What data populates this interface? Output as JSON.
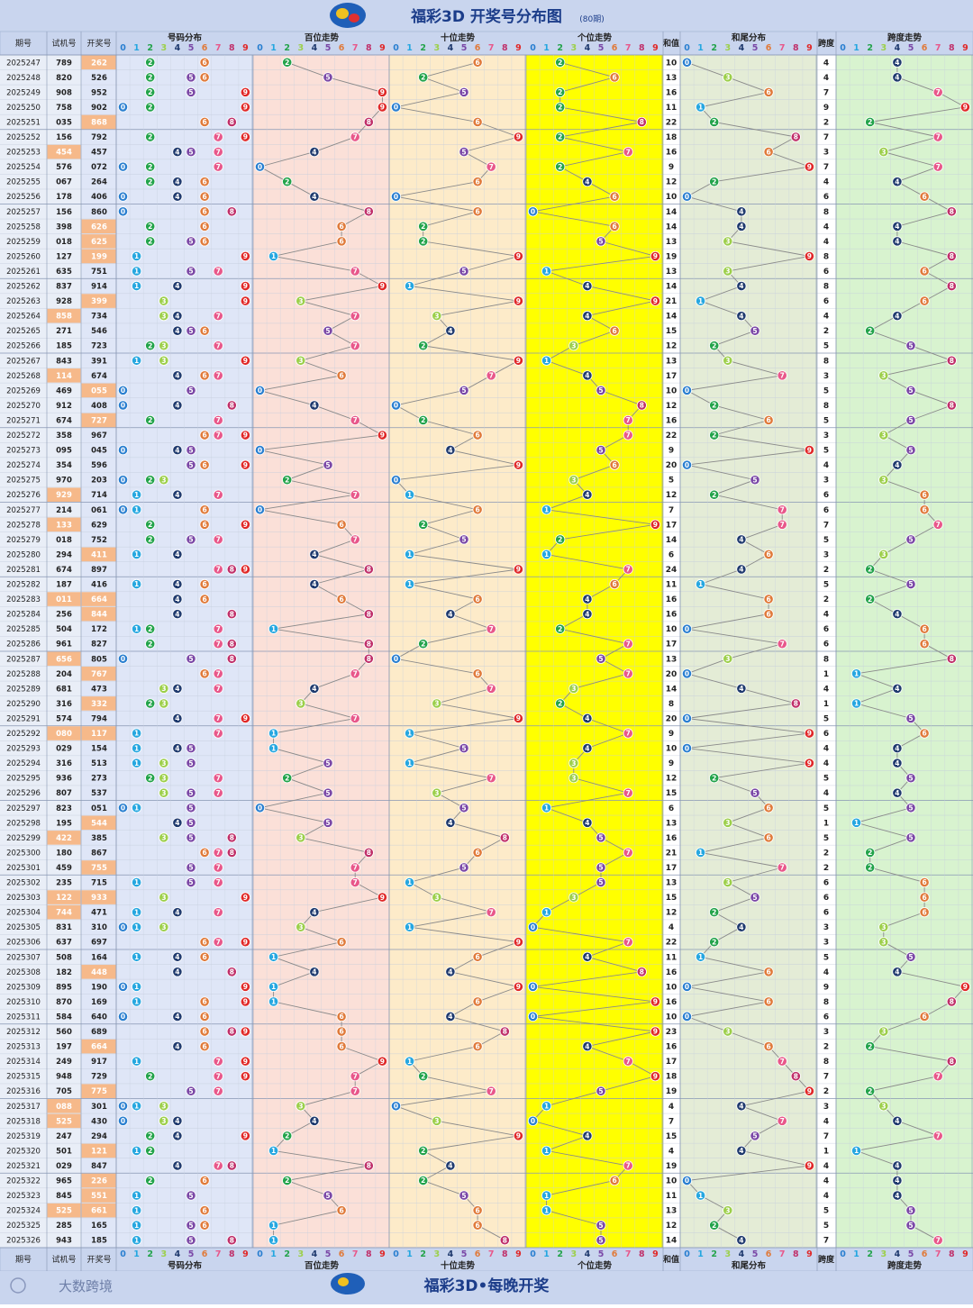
{
  "title": "福彩3D 开奖号分布图",
  "title_note": "(80期)",
  "footer_brand": "大数跨境",
  "footer_title": "福彩3D•每晚开奖",
  "headers": {
    "issue": "期号",
    "trial": "试机号",
    "draw": "开奖号",
    "g_dist": "号码分布",
    "g_h": "百位走势",
    "g_t": "十位走势",
    "g_u": "个位走势",
    "g_sum": "和值",
    "g_tail": "和尾分布",
    "g_span": "跨度",
    "g_spantrend": "跨度走势"
  },
  "digits": [
    "0",
    "1",
    "2",
    "3",
    "4",
    "5",
    "6",
    "7",
    "8",
    "9"
  ],
  "colors": {
    "c0": "#2a7fd0",
    "c1": "#26a7e0",
    "c2": "#22a34a",
    "c3": "#9ccf4a",
    "c4": "#1f3a6e",
    "c5": "#7a47a6",
    "c6": "#e07a3a",
    "c7": "#e8578a",
    "c8": "#c0306a",
    "c9": "#e02828",
    "header_bg": "#c9d5ee",
    "dist_bg": "#dfe6f7",
    "h_bg": "#fbe0d8",
    "t_bg": "#fdebc9",
    "u_bg": "#ffff00",
    "sum_bg": "#eaf0dc",
    "tail_bg": "#e4ecd6",
    "span_bg": "#d8f3cf",
    "highlight": "#f6b98a"
  },
  "chart_data": {
    "type": "table",
    "columns": [
      "期号",
      "试机号",
      "开奖号",
      "和值",
      "跨度"
    ],
    "rows": [
      [
        "2025247",
        "789",
        "262"
      ],
      [
        "2025248",
        "820",
        "526"
      ],
      [
        "2025249",
        "908",
        "952"
      ],
      [
        "2025250",
        "758",
        "902"
      ],
      [
        "2025251",
        "035",
        "868"
      ],
      [
        "2025252",
        "156",
        "792"
      ],
      [
        "2025253",
        "454",
        "457"
      ],
      [
        "2025254",
        "576",
        "072"
      ],
      [
        "2025255",
        "067",
        "264"
      ],
      [
        "2025256",
        "178",
        "406"
      ],
      [
        "2025257",
        "156",
        "860"
      ],
      [
        "2025258",
        "398",
        "626"
      ],
      [
        "2025259",
        "018",
        "625"
      ],
      [
        "2025260",
        "127",
        "199"
      ],
      [
        "2025261",
        "635",
        "751"
      ],
      [
        "2025262",
        "837",
        "914"
      ],
      [
        "2025263",
        "928",
        "399"
      ],
      [
        "2025264",
        "858",
        "734"
      ],
      [
        "2025265",
        "271",
        "546"
      ],
      [
        "2025266",
        "185",
        "723"
      ],
      [
        "2025267",
        "843",
        "391"
      ],
      [
        "2025268",
        "114",
        "674"
      ],
      [
        "2025269",
        "469",
        "055"
      ],
      [
        "2025270",
        "912",
        "408"
      ],
      [
        "2025271",
        "674",
        "727"
      ],
      [
        "2025272",
        "358",
        "967"
      ],
      [
        "2025273",
        "095",
        "045"
      ],
      [
        "2025274",
        "354",
        "596"
      ],
      [
        "2025275",
        "970",
        "203"
      ],
      [
        "2025276",
        "929",
        "714"
      ],
      [
        "2025277",
        "214",
        "061"
      ],
      [
        "2025278",
        "133",
        "629"
      ],
      [
        "2025279",
        "018",
        "752"
      ],
      [
        "2025280",
        "294",
        "411"
      ],
      [
        "2025281",
        "674",
        "897"
      ],
      [
        "2025282",
        "187",
        "416"
      ],
      [
        "2025283",
        "011",
        "664"
      ],
      [
        "2025284",
        "256",
        "844"
      ],
      [
        "2025285",
        "504",
        "172"
      ],
      [
        "2025286",
        "961",
        "827"
      ],
      [
        "2025287",
        "656",
        "805"
      ],
      [
        "2025288",
        "204",
        "767"
      ],
      [
        "2025289",
        "681",
        "473"
      ],
      [
        "2025290",
        "316",
        "332"
      ],
      [
        "2025291",
        "574",
        "794"
      ],
      [
        "2025292",
        "080",
        "117"
      ],
      [
        "2025293",
        "029",
        "154"
      ],
      [
        "2025294",
        "316",
        "513"
      ],
      [
        "2025295",
        "936",
        "273"
      ],
      [
        "2025296",
        "807",
        "537"
      ],
      [
        "2025297",
        "823",
        "051"
      ],
      [
        "2025298",
        "195",
        "544"
      ],
      [
        "2025299",
        "422",
        "385"
      ],
      [
        "2025300",
        "180",
        "867"
      ],
      [
        "2025301",
        "459",
        "755"
      ],
      [
        "2025302",
        "235",
        "715"
      ],
      [
        "2025303",
        "122",
        "933"
      ],
      [
        "2025304",
        "744",
        "471"
      ],
      [
        "2025305",
        "831",
        "310"
      ],
      [
        "2025306",
        "637",
        "697"
      ],
      [
        "2025307",
        "508",
        "164"
      ],
      [
        "2025308",
        "182",
        "448"
      ],
      [
        "2025309",
        "895",
        "190"
      ],
      [
        "2025310",
        "870",
        "169"
      ],
      [
        "2025311",
        "584",
        "640"
      ],
      [
        "2025312",
        "560",
        "689"
      ],
      [
        "2025313",
        "197",
        "664"
      ],
      [
        "2025314",
        "249",
        "917"
      ],
      [
        "2025315",
        "948",
        "729"
      ],
      [
        "2025316",
        "705",
        "775"
      ],
      [
        "2025317",
        "088",
        "301"
      ],
      [
        "2025318",
        "525",
        "430"
      ],
      [
        "2025319",
        "247",
        "294"
      ],
      [
        "2025320",
        "501",
        "121"
      ],
      [
        "2025321",
        "029",
        "847"
      ],
      [
        "2025322",
        "965",
        "226"
      ],
      [
        "2025323",
        "845",
        "551"
      ],
      [
        "2025324",
        "525",
        "661"
      ],
      [
        "2025325",
        "285",
        "165"
      ],
      [
        "2025326",
        "943",
        "185"
      ]
    ],
    "sums": [
      10,
      13,
      16,
      11,
      22,
      18,
      16,
      9,
      12,
      10,
      14,
      14,
      13,
      19,
      13,
      14,
      21,
      14,
      15,
      12,
      13,
      17,
      10,
      12,
      16,
      22,
      9,
      20,
      5,
      12,
      7,
      17,
      14,
      6,
      24,
      11,
      16,
      16,
      10,
      17,
      13,
      20,
      14,
      8,
      20,
      9,
      10,
      9,
      12,
      15,
      6,
      13,
      16,
      21,
      17,
      13,
      15,
      12,
      4,
      22,
      11,
      16,
      10,
      16,
      10,
      23,
      16,
      17,
      18,
      19,
      4,
      7,
      15,
      4,
      19,
      10,
      11,
      13,
      12,
      14
    ],
    "spans": [
      4,
      4,
      7,
      9,
      2,
      7,
      3,
      7,
      4,
      6,
      8,
      4,
      4,
      8,
      6,
      8,
      6,
      4,
      2,
      5,
      8,
      3,
      5,
      8,
      5,
      3,
      5,
      4,
      3,
      6,
      6,
      7,
      5,
      3,
      2,
      5,
      2,
      4,
      6,
      6,
      8,
      1,
      4,
      1,
      5,
      6,
      4,
      4,
      5,
      4,
      5,
      1,
      5,
      2,
      2,
      6,
      6,
      6,
      3,
      3,
      5,
      4,
      9,
      8,
      6,
      3,
      2,
      8,
      7,
      2,
      3,
      4,
      7,
      1,
      4,
      4,
      4,
      5,
      5,
      7
    ],
    "highlighted_trial_rows": [
      "2025253",
      "2025264",
      "2025268",
      "2025276",
      "2025278",
      "2025283",
      "2025287",
      "2025292",
      "2025299",
      "2025303",
      "2025304",
      "2025317",
      "2025318",
      "2025324"
    ],
    "highlighted_draw_rows": [
      "2025247",
      "2025251",
      "2025258",
      "2025259",
      "2025260",
      "2025263",
      "2025269",
      "2025271",
      "2025280",
      "2025283",
      "2025284",
      "2025288",
      "2025290",
      "2025292",
      "2025298",
      "2025301",
      "2025303",
      "2025308",
      "2025313",
      "2025316",
      "2025320",
      "2025322",
      "2025323",
      "2025324"
    ]
  }
}
